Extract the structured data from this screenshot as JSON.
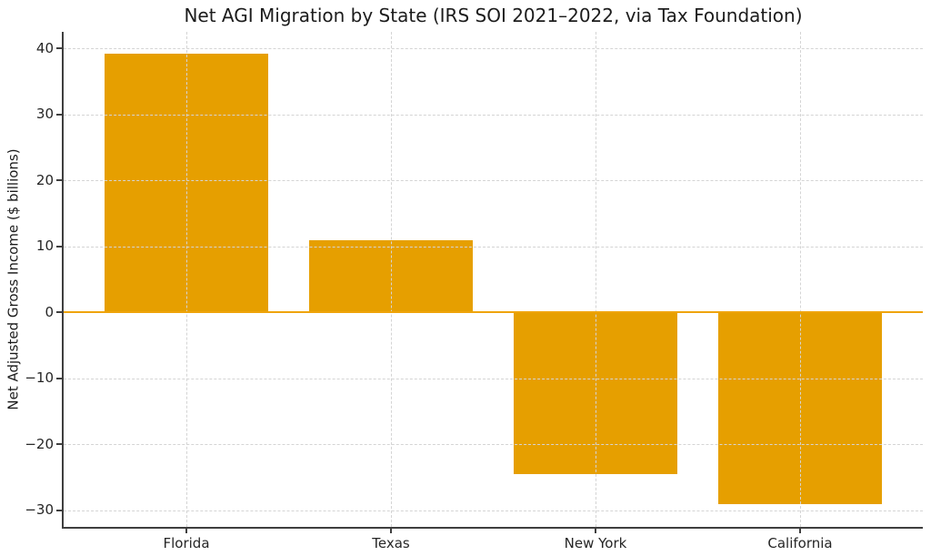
{
  "chart_data": {
    "type": "bar",
    "title": "Net AGI Migration by State (IRS SOI 2021–2022, via Tax Foundation)",
    "ylabel": "Net Adjusted Gross Income ($ billions)",
    "xlabel": "",
    "categories": [
      "Florida",
      "Texas",
      "New York",
      "California"
    ],
    "values": [
      39.2,
      10.9,
      -24.5,
      -29.1
    ],
    "yticks": [
      40,
      30,
      20,
      10,
      0,
      -10,
      -20,
      -30
    ],
    "ytick_labels": [
      "40",
      "30",
      "20",
      "10",
      "0",
      "−10",
      "−20",
      "−30"
    ],
    "ylim": [
      -32.5,
      42.5
    ],
    "xlim": [
      -0.6,
      3.6
    ],
    "bar_width_fraction": 0.8,
    "bar_color": "#E69F00",
    "zero_line_color": "#EFA40A",
    "grid": true,
    "grid_linestyle": "dashed",
    "grid_color": "#d4d4d4",
    "spine_color": "#3f3f3f",
    "tick_color": "#3f3f3f",
    "axis_text_color": "#262626",
    "legend_position": "none"
  }
}
